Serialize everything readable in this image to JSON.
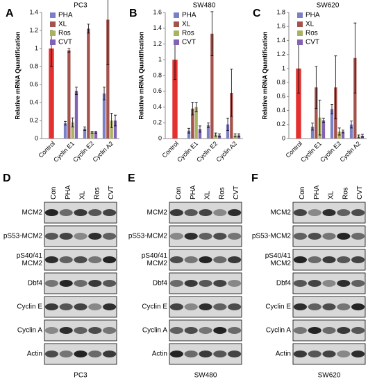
{
  "chart_data": [
    {
      "type": "bar",
      "panel": "A",
      "title": "PC3",
      "y_label": "Relative mRNA Quantification",
      "categories": [
        "Control",
        "Cyclin E1",
        "Cyclin E2",
        "Cyclin A2"
      ],
      "ylim": [
        0,
        1.4
      ],
      "yticks": [
        0,
        0.2,
        0.4,
        0.6,
        0.8,
        1,
        1.2,
        1.4
      ],
      "series": [
        {
          "color": "#e3312f",
          "values": [
            1,
            null,
            null,
            null
          ],
          "errors": [
            0.2,
            null,
            null,
            null
          ]
        },
        {
          "name": "PHA",
          "color": "#7b7fc6",
          "values": [
            null,
            0.17,
            0.11,
            0.5
          ],
          "errors": [
            null,
            0.02,
            0.02,
            0.07
          ]
        },
        {
          "name": "XL",
          "color": "#a3524c",
          "values": [
            null,
            0.98,
            1.22,
            1.32
          ],
          "errors": [
            null,
            0.02,
            0.05,
            0.5
          ]
        },
        {
          "name": "Ros",
          "color": "#a9b163",
          "values": [
            null,
            0.18,
            0.07,
            0.2
          ],
          "errors": [
            null,
            0.05,
            0.01,
            0.08
          ]
        },
        {
          "name": "CVT",
          "color": "#8262b3",
          "values": [
            null,
            0.53,
            0.07,
            0.2
          ],
          "errors": [
            null,
            0.04,
            0.01,
            0.06
          ]
        }
      ]
    },
    {
      "type": "bar",
      "panel": "B",
      "title": "SW480",
      "y_label": "Relative mRNA Quantification",
      "categories": [
        "Control",
        "Cyclin E1",
        "Cyclin E2",
        "Cyclin A2"
      ],
      "ylim": [
        0,
        1.6
      ],
      "yticks": [
        0,
        0.2,
        0.4,
        0.6,
        0.8,
        1,
        1.2,
        1.4,
        1.6
      ],
      "series": [
        {
          "color": "#e3312f",
          "values": [
            1,
            null,
            null,
            null
          ],
          "errors": [
            0.25,
            null,
            null,
            null
          ]
        },
        {
          "name": "PHA",
          "color": "#7b7fc6",
          "values": [
            null,
            0.1,
            0.17,
            0.18
          ],
          "errors": [
            null,
            0.03,
            0.03,
            0.08
          ]
        },
        {
          "name": "XL",
          "color": "#a3524c",
          "values": [
            null,
            0.38,
            1.33,
            0.58
          ],
          "errors": [
            null,
            0.08,
            0.28,
            0.3
          ]
        },
        {
          "name": "Ros",
          "color": "#a9b163",
          "values": [
            null,
            0.4,
            0.05,
            0.04
          ],
          "errors": [
            null,
            0.06,
            0.02,
            0.02
          ]
        },
        {
          "name": "CVT",
          "color": "#8262b3",
          "values": [
            null,
            0.12,
            0.04,
            0.04
          ],
          "errors": [
            null,
            0.04,
            0.02,
            0.02
          ]
        }
      ]
    },
    {
      "type": "bar",
      "panel": "C",
      "title": "SW620",
      "y_label": "Relative mRNA Quantification",
      "categories": [
        "Control",
        "Cyclin E1",
        "Cyclin E2",
        "Cyclin A2"
      ],
      "ylim": [
        0,
        1.8
      ],
      "yticks": [
        0,
        0.2,
        0.4,
        0.6,
        0.8,
        1,
        1.2,
        1.4,
        1.6,
        1.8
      ],
      "series": [
        {
          "color": "#e3312f",
          "values": [
            1,
            null,
            null,
            null
          ],
          "errors": [
            0.35,
            null,
            null,
            null
          ]
        },
        {
          "name": "PHA",
          "color": "#7b7fc6",
          "values": [
            null,
            0.17,
            0.42,
            0.2
          ],
          "errors": [
            null,
            0.05,
            0.07,
            0.05
          ]
        },
        {
          "name": "XL",
          "color": "#a3524c",
          "values": [
            null,
            0.73,
            0.73,
            1.15
          ],
          "errors": [
            null,
            0.3,
            0.45,
            0.5
          ]
        },
        {
          "name": "Ros",
          "color": "#a9b163",
          "values": [
            null,
            0.3,
            0.1,
            0.03
          ],
          "errors": [
            null,
            0.25,
            0.05,
            0.02
          ]
        },
        {
          "name": "CVT",
          "color": "#8262b3",
          "values": [
            null,
            0.26,
            0.1,
            0.04
          ],
          "errors": [
            null,
            0.03,
            0.02,
            0.02
          ]
        }
      ]
    }
  ],
  "blots": {
    "lanes": [
      "Con",
      "PHA",
      "XL",
      "Ros",
      "CVT"
    ],
    "rows": [
      [
        "MCM2"
      ],
      [
        "pS53-MCM2"
      ],
      [
        "pS40/41",
        "MCM2"
      ],
      [
        "Dbf4"
      ],
      [
        "Cyclin E"
      ],
      [
        "Cyclin A"
      ],
      [
        "Actin"
      ]
    ],
    "panels": [
      {
        "letter": "D",
        "cell_line": "PC3"
      },
      {
        "letter": "E",
        "cell_line": "SW480"
      },
      {
        "letter": "F",
        "cell_line": "SW620"
      }
    ]
  }
}
